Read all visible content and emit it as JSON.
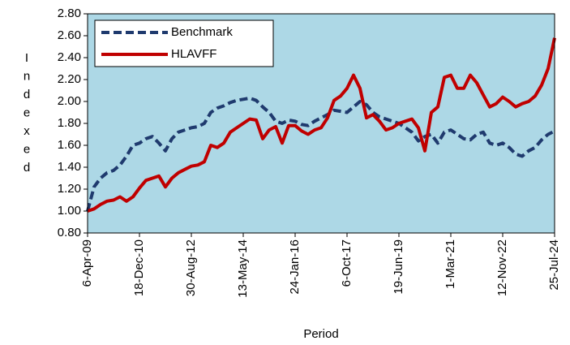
{
  "chart_data": {
    "type": "line",
    "x_label": "Period",
    "y_label": "Indexed",
    "categories": [
      "6-Apr-09",
      null,
      null,
      null,
      null,
      null,
      null,
      null,
      "18-Dec-10",
      null,
      null,
      null,
      null,
      null,
      null,
      null,
      "30-Aug-12",
      null,
      null,
      null,
      null,
      null,
      null,
      null,
      "13-May-14",
      null,
      null,
      null,
      null,
      null,
      null,
      null,
      "24-Jan-16",
      null,
      null,
      null,
      null,
      null,
      null,
      null,
      "6-Oct-17",
      null,
      null,
      null,
      null,
      null,
      null,
      null,
      "19-Jun-19",
      null,
      null,
      null,
      null,
      null,
      null,
      null,
      "1-Mar-21",
      null,
      null,
      null,
      null,
      null,
      null,
      null,
      "12-Nov-22",
      null,
      null,
      null,
      null,
      null,
      null,
      null,
      "25-Jul-24"
    ],
    "series": [
      {
        "name": "Benchmark",
        "color": "#1f3a6e",
        "dash": true,
        "values": [
          1.0,
          1.22,
          1.3,
          1.35,
          1.37,
          1.42,
          1.5,
          1.6,
          1.62,
          1.66,
          1.68,
          1.62,
          1.55,
          1.66,
          1.72,
          1.74,
          1.76,
          1.77,
          1.8,
          1.9,
          1.94,
          1.96,
          1.99,
          2.01,
          2.02,
          2.03,
          2.01,
          1.95,
          1.9,
          1.82,
          1.8,
          1.83,
          1.82,
          1.79,
          1.78,
          1.82,
          1.85,
          1.88,
          1.92,
          1.91,
          1.9,
          1.95,
          2.0,
          1.97,
          1.9,
          1.86,
          1.84,
          1.82,
          1.8,
          1.76,
          1.72,
          1.64,
          1.68,
          1.7,
          1.62,
          1.72,
          1.74,
          1.7,
          1.66,
          1.65,
          1.7,
          1.72,
          1.62,
          1.6,
          1.62,
          1.58,
          1.52,
          1.5,
          1.55,
          1.58,
          1.65,
          1.7,
          1.73
        ]
      },
      {
        "name": "HLAVFF",
        "color": "#c00000",
        "dash": false,
        "values": [
          1.0,
          1.02,
          1.06,
          1.09,
          1.1,
          1.13,
          1.09,
          1.13,
          1.21,
          1.28,
          1.3,
          1.32,
          1.22,
          1.3,
          1.35,
          1.38,
          1.41,
          1.42,
          1.45,
          1.6,
          1.58,
          1.62,
          1.72,
          1.76,
          1.8,
          1.84,
          1.83,
          1.66,
          1.74,
          1.77,
          1.62,
          1.78,
          1.78,
          1.73,
          1.7,
          1.74,
          1.76,
          1.85,
          2.01,
          2.05,
          2.12,
          2.24,
          2.12,
          1.85,
          1.88,
          1.82,
          1.74,
          1.76,
          1.8,
          1.82,
          1.84,
          1.76,
          1.55,
          1.9,
          1.95,
          2.22,
          2.24,
          2.12,
          2.12,
          2.24,
          2.17,
          2.06,
          1.95,
          1.98,
          2.04,
          2.0,
          1.95,
          1.98,
          2.0,
          2.05,
          2.15,
          2.3,
          2.58
        ]
      }
    ],
    "ylim": [
      0.8,
      2.8
    ],
    "yticks": [
      {
        "value": 0.8,
        "label": "0.80"
      },
      {
        "value": 1.0,
        "label": "1.00"
      },
      {
        "value": 1.2,
        "label": "1.20"
      },
      {
        "value": 1.4,
        "label": "1.40"
      },
      {
        "value": 1.6,
        "label": "1.60"
      },
      {
        "value": 1.8,
        "label": "1.80"
      },
      {
        "value": 2.0,
        "label": "2.00"
      },
      {
        "value": 2.2,
        "label": "2.20"
      },
      {
        "value": 2.4,
        "label": "2.40"
      },
      {
        "value": 2.6,
        "label": "2.60"
      },
      {
        "value": 2.8,
        "label": "2.80"
      }
    ],
    "background": "#add8e6",
    "legend": "top-left"
  }
}
